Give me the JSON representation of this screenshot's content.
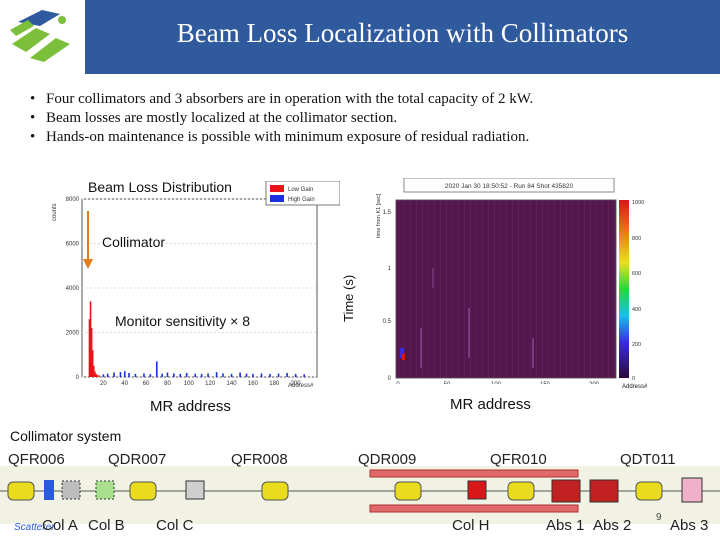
{
  "header": {
    "title": "Beam Loss Localization with Collimators"
  },
  "bullets": [
    "Four collimators and 3 absorbers are in operation with the total capacity of 2 kW.",
    "Beam losses are mostly localized at the collimator section.",
    "Hands-on maintenance is possible with minimum exposure of residual radiation."
  ],
  "bullet_marker": "•",
  "left_chart": {
    "title": "Beam Loss Distribution",
    "legend": [
      {
        "label": "Low Gain",
        "color": "#e8141a"
      },
      {
        "label": "High Gain",
        "color": "#1a2fe0"
      }
    ],
    "y_axis_label": "counts",
    "x_axis_label": "Address#",
    "annotation_collimator": "Collimator",
    "annotation_sensitivity": "Monitor sensitivity × 8",
    "xlabel_below": "MR address"
  },
  "chart_data": {
    "type": "bar",
    "title": "Beam Loss Distribution",
    "xlabel": "Address#",
    "ylabel": "counts",
    "xlim": [
      0,
      220
    ],
    "ylim": [
      0,
      8000
    ],
    "x_ticks": [
      20,
      40,
      60,
      80,
      100,
      120,
      140,
      160,
      180,
      200
    ],
    "y_ticks": [
      0,
      2000,
      4000,
      6000,
      8000
    ],
    "series": [
      {
        "name": "Low Gain",
        "color": "#e8141a",
        "points": [
          [
            7,
            2600
          ],
          [
            8,
            3400
          ],
          [
            9,
            2200
          ],
          [
            10,
            1200
          ],
          [
            11,
            500
          ],
          [
            12,
            250
          ],
          [
            13,
            150
          ],
          [
            14,
            100
          ],
          [
            16,
            80
          ]
        ]
      },
      {
        "name": "High Gain",
        "color": "#1a2fe0",
        "points": [
          [
            20,
            120
          ],
          [
            24,
            150
          ],
          [
            30,
            200
          ],
          [
            36,
            220
          ],
          [
            40,
            260
          ],
          [
            44,
            180
          ],
          [
            50,
            140
          ],
          [
            58,
            160
          ],
          [
            64,
            130
          ],
          [
            70,
            700
          ],
          [
            75,
            150
          ],
          [
            80,
            200
          ],
          [
            86,
            160
          ],
          [
            92,
            140
          ],
          [
            98,
            180
          ],
          [
            106,
            150
          ],
          [
            112,
            140
          ],
          [
            118,
            160
          ],
          [
            126,
            220
          ],
          [
            132,
            160
          ],
          [
            140,
            140
          ],
          [
            148,
            200
          ],
          [
            154,
            150
          ],
          [
            160,
            140
          ],
          [
            168,
            160
          ],
          [
            176,
            140
          ],
          [
            184,
            150
          ],
          [
            192,
            180
          ],
          [
            200,
            140
          ],
          [
            208,
            120
          ]
        ]
      }
    ]
  },
  "right_chart": {
    "header": "2020 Jan 30 18:50:52 - Run 84 Shot 435820",
    "y_axis_label": "Time (s)",
    "y_inner_label": "time from K1 [sec]",
    "x_axis_label": "Address#",
    "x_ticks": [
      "0",
      "50",
      "100",
      "150",
      "200"
    ],
    "y_ticks": [
      "0",
      "0.5",
      "1",
      "1.5"
    ],
    "colorbar_ticks": [
      "0",
      "200",
      "400",
      "600",
      "800",
      "1000"
    ],
    "xlabel_below": "MR address"
  },
  "beamline": {
    "section_label": "Collimator system",
    "top_labels": [
      "QFR006",
      "QDR007",
      "QFR008",
      "QDR009",
      "QFR010",
      "QDT011"
    ],
    "bottom_labels": [
      "Col A",
      "Col B",
      "Col C",
      "Col H",
      "Abs 1",
      "Abs 2",
      "Abs 3"
    ],
    "scatterer_label": "Scatterer",
    "page_number": "9"
  }
}
